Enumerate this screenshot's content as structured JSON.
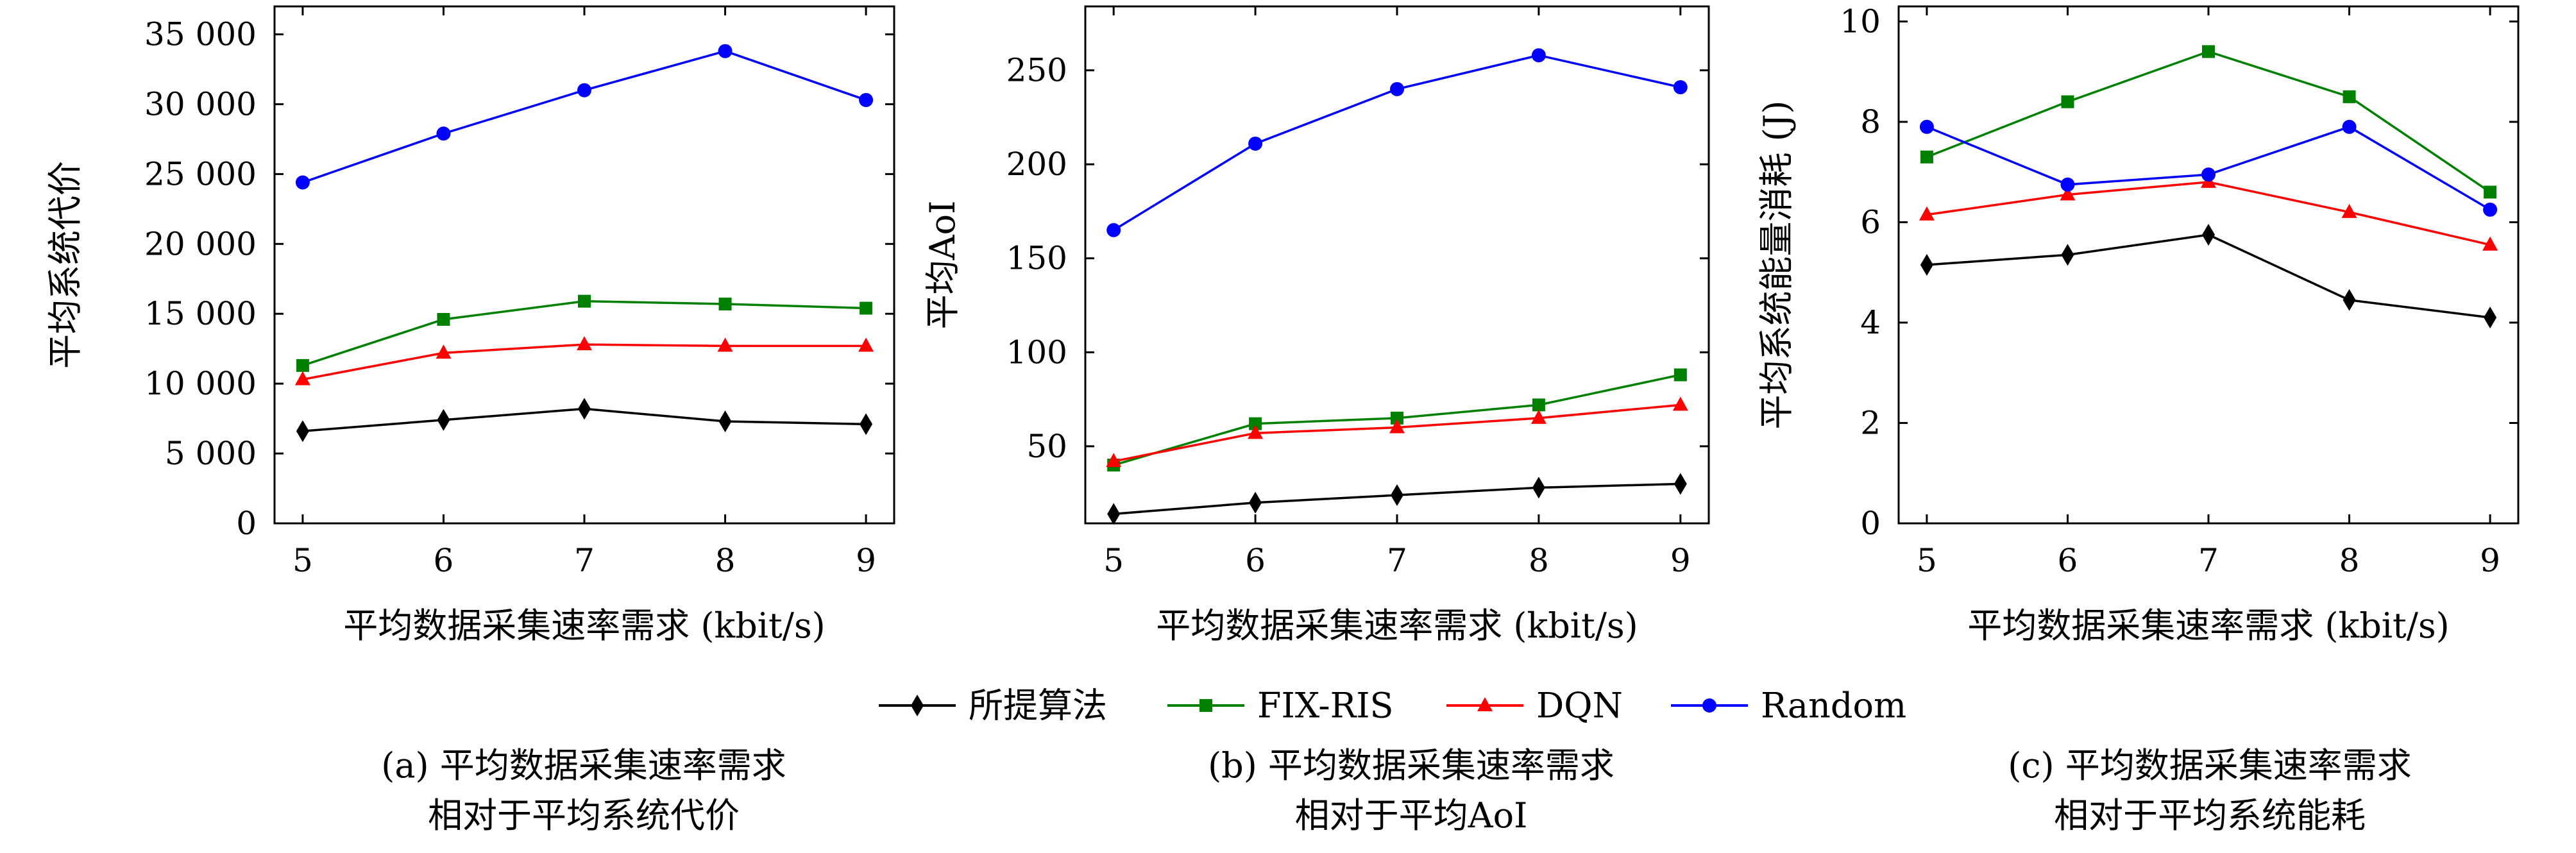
{
  "colors": {
    "proposed": "#000000",
    "fixris": "#008000",
    "dqn": "#ff0000",
    "random": "#0000ff"
  },
  "legend": {
    "proposed": "所提算法",
    "fixris": "FIX-RIS",
    "dqn": "DQN",
    "random": "Random"
  },
  "captions": {
    "a_line1": "(a) 平均数据采集速率需求",
    "a_line2": "相对于平均系统代价",
    "b_line1": "(b) 平均数据采集速率需求",
    "b_line2": "相对于平均AoI",
    "c_line1": "(c) 平均数据采集速率需求",
    "c_line2": "相对于平均系统能耗"
  },
  "chart_data": [
    {
      "type": "line",
      "xlabel": "平均数据采集速率需求 (kbit/s)",
      "ylabel": "平均系统代价",
      "x": [
        5,
        6,
        7,
        8,
        9
      ],
      "xticks": [
        "5",
        "6",
        "7",
        "8",
        "9"
      ],
      "xlim": [
        4.8,
        9.2
      ],
      "ylim": [
        0,
        37000
      ],
      "yticks": [
        0,
        5000,
        10000,
        15000,
        20000,
        25000,
        30000,
        35000
      ],
      "ytick_labels": [
        "0",
        "5 000",
        "10 000",
        "15 000",
        "20 000",
        "25 000",
        "30 000",
        "35 000"
      ],
      "grid": false,
      "legend_position": "bottom-center (shared)",
      "series": [
        {
          "name": "所提算法",
          "key": "proposed",
          "marker": "diamond",
          "values": [
            6600,
            7400,
            8200,
            7300,
            7100
          ]
        },
        {
          "name": "FIX-RIS",
          "key": "fixris",
          "marker": "square",
          "values": [
            11300,
            14600,
            15900,
            15700,
            15400
          ]
        },
        {
          "name": "DQN",
          "key": "dqn",
          "marker": "triangle",
          "values": [
            10300,
            12200,
            12800,
            12700,
            12700
          ]
        },
        {
          "name": "Random",
          "key": "random",
          "marker": "circle",
          "values": [
            24400,
            27900,
            31000,
            33800,
            30300
          ]
        }
      ]
    },
    {
      "type": "line",
      "xlabel": "平均数据采集速率需求 (kbit/s)",
      "ylabel": "平均AoI",
      "x": [
        5,
        6,
        7,
        8,
        9
      ],
      "xticks": [
        "5",
        "6",
        "7",
        "8",
        "9"
      ],
      "xlim": [
        4.8,
        9.2
      ],
      "ylim": [
        9,
        284
      ],
      "yticks": [
        50,
        100,
        150,
        200,
        250
      ],
      "ytick_labels": [
        "50",
        "100",
        "150",
        "200",
        "250"
      ],
      "grid": false,
      "legend_position": "bottom-center (shared)",
      "series": [
        {
          "name": "所提算法",
          "key": "proposed",
          "marker": "diamond",
          "values": [
            14,
            20,
            24,
            28,
            30
          ]
        },
        {
          "name": "FIX-RIS",
          "key": "fixris",
          "marker": "square",
          "values": [
            40,
            62,
            65,
            72,
            88
          ]
        },
        {
          "name": "DQN",
          "key": "dqn",
          "marker": "triangle",
          "values": [
            42,
            57,
            60,
            65,
            72
          ]
        },
        {
          "name": "Random",
          "key": "random",
          "marker": "circle",
          "values": [
            165,
            211,
            240,
            258,
            241
          ]
        }
      ]
    },
    {
      "type": "line",
      "xlabel": "平均数据采集速率需求 (kbit/s)",
      "ylabel": "平均系统能量消耗 (J)",
      "x": [
        5,
        6,
        7,
        8,
        9
      ],
      "xticks": [
        "5",
        "6",
        "7",
        "8",
        "9"
      ],
      "xlim": [
        4.8,
        9.2
      ],
      "ylim": [
        0,
        10.3
      ],
      "yticks": [
        0,
        2,
        4,
        6,
        8,
        10
      ],
      "ytick_labels": [
        "0",
        "2",
        "4",
        "6",
        "8",
        "10"
      ],
      "grid": false,
      "legend_position": "bottom-center (shared)",
      "series": [
        {
          "name": "所提算法",
          "key": "proposed",
          "marker": "diamond",
          "values": [
            5.15,
            5.35,
            5.75,
            4.45,
            4.1
          ]
        },
        {
          "name": "FIX-RIS",
          "key": "fixris",
          "marker": "square",
          "values": [
            7.3,
            8.4,
            9.4,
            8.5,
            6.6
          ]
        },
        {
          "name": "DQN",
          "key": "dqn",
          "marker": "triangle",
          "values": [
            6.15,
            6.55,
            6.8,
            6.2,
            5.55
          ]
        },
        {
          "name": "Random",
          "key": "random",
          "marker": "circle",
          "values": [
            7.9,
            6.75,
            6.95,
            7.9,
            6.25
          ]
        }
      ]
    }
  ]
}
